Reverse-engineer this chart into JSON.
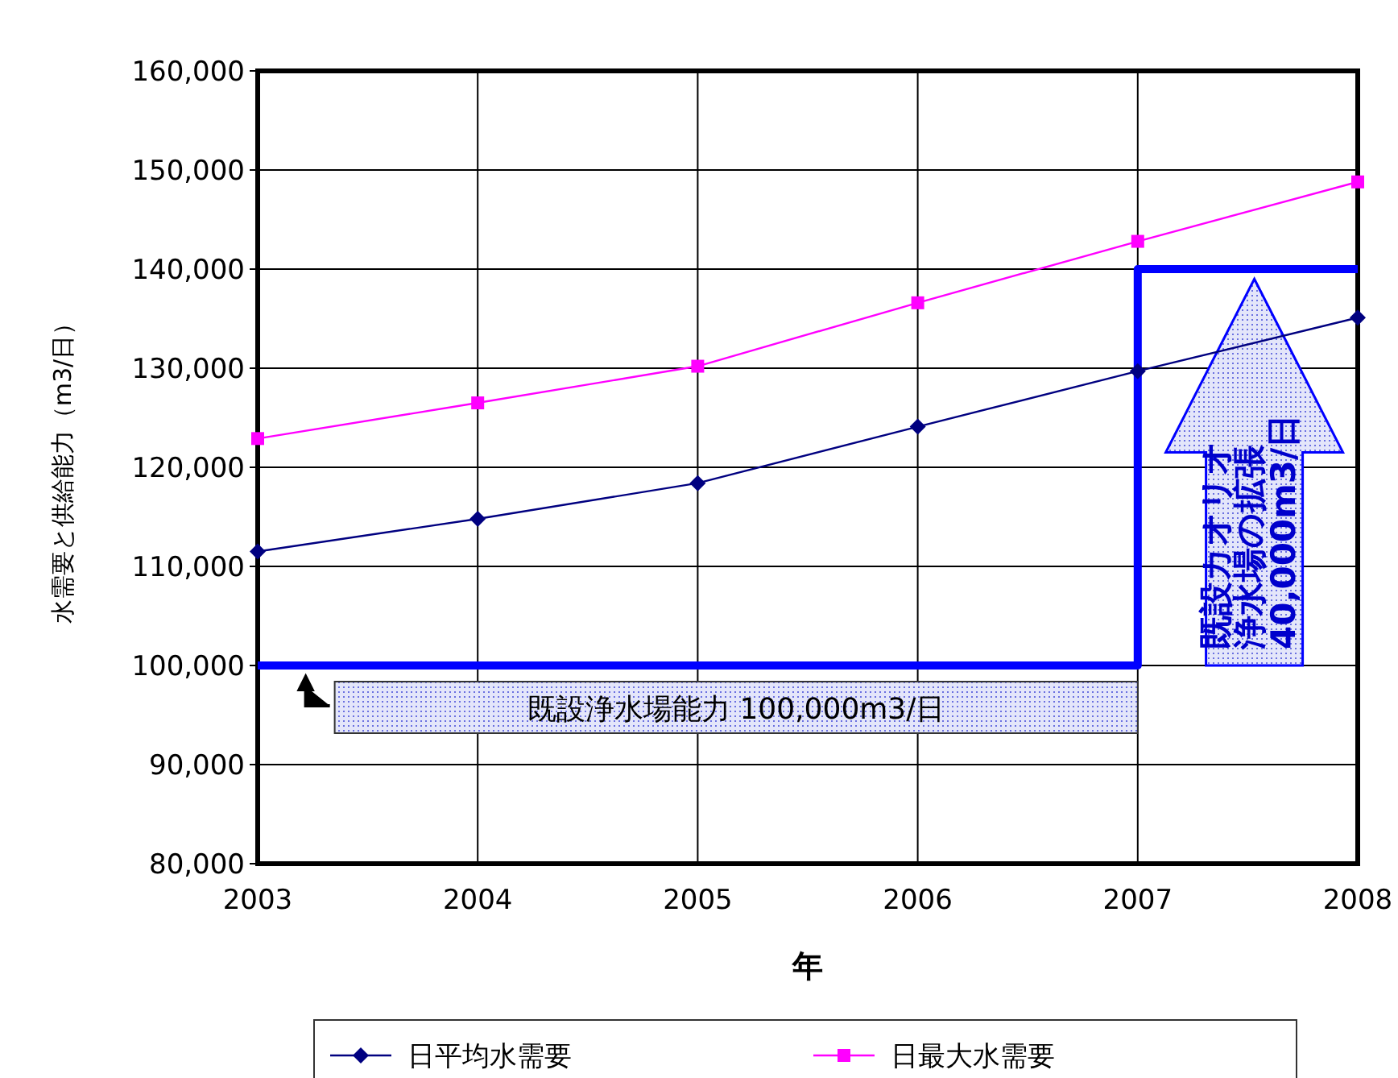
{
  "chart_data": {
    "type": "line",
    "xlabel": "年",
    "ylabel": "水需要と供給能力（m3/日）",
    "x": [
      2003,
      2004,
      2005,
      2006,
      2007,
      2008
    ],
    "xlim": [
      2003,
      2008
    ],
    "xticks": [
      2003,
      2004,
      2005,
      2006,
      2007,
      2008
    ],
    "ylim": [
      80000,
      160000
    ],
    "yticks": [
      {
        "value": 80000,
        "label": "80,000"
      },
      {
        "value": 90000,
        "label": "90,000"
      },
      {
        "value": 100000,
        "label": "100,000"
      },
      {
        "value": 110000,
        "label": "110,000"
      },
      {
        "value": 120000,
        "label": "120,000"
      },
      {
        "value": 130000,
        "label": "130,000"
      },
      {
        "value": 140000,
        "label": "140,000"
      },
      {
        "value": 150000,
        "label": "150,000"
      },
      {
        "value": 160000,
        "label": "160,000"
      }
    ],
    "grid": true,
    "legend": "bottom",
    "line_style": "solid",
    "series": [
      {
        "name": "日平均水需要",
        "color": "#000080",
        "marker": "diamond",
        "values": [
          111500,
          114800,
          118400,
          124100,
          129700,
          135100
        ]
      },
      {
        "name": "日最大水需要",
        "color": "#ff00ff",
        "marker": "square",
        "values": [
          122900,
          126500,
          130200,
          136600,
          142800,
          148800
        ]
      },
      {
        "type": "line",
        "color": "#0000ff",
        "marker": "none",
        "x": [
          2003,
          2007,
          2007,
          2008
        ],
        "values": [
          100000,
          100000,
          140000,
          140000
        ]
      }
    ],
    "annotations": [
      "既設浄水場能力  100,000m3/日",
      "既設カオリオ",
      "浄水場の拡張",
      "40,000m3/日"
    ]
  }
}
